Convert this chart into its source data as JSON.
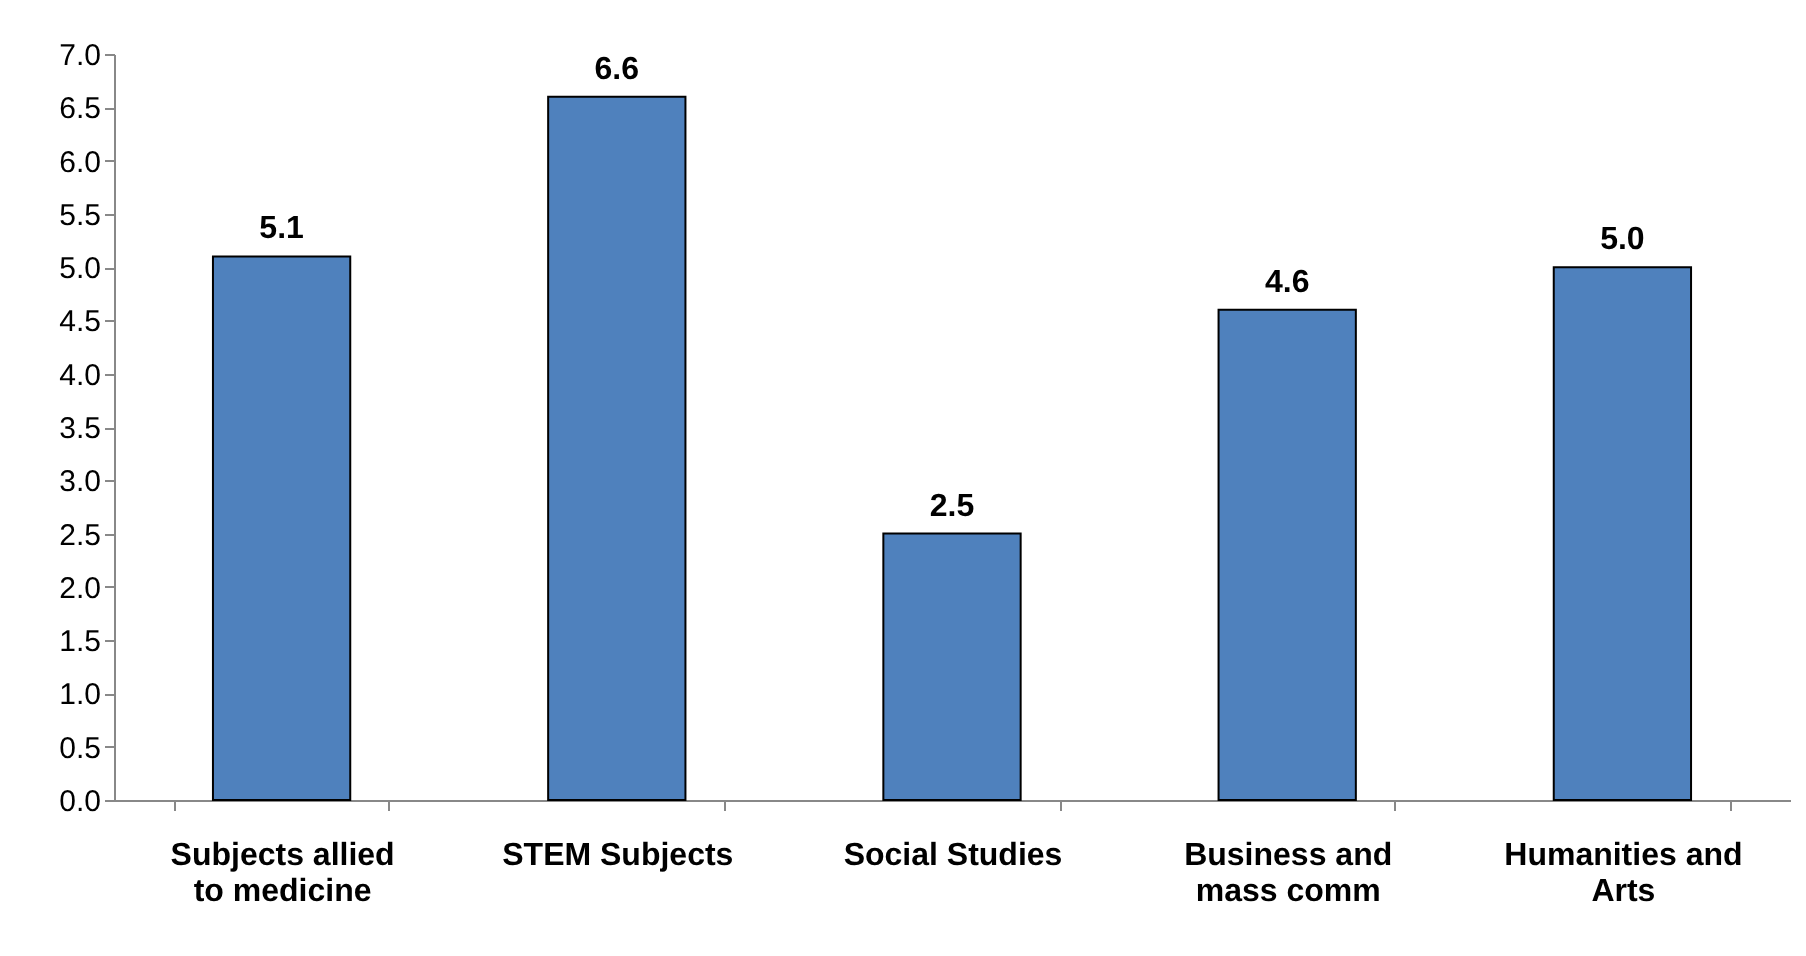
{
  "chart_data": {
    "type": "bar",
    "categories": [
      "Subjects allied to medicine",
      "STEM Subjects",
      "Social Studies",
      "Business and mass comm",
      "Humanities and Arts"
    ],
    "values": [
      5.1,
      6.6,
      2.5,
      4.6,
      5.0
    ],
    "value_labels": [
      "5.1",
      "6.6",
      "2.5",
      "4.6",
      "5.0"
    ],
    "color": "#4f81bd",
    "ylim": [
      0,
      7
    ],
    "yticks": [
      {
        "value": 0,
        "label": "0.0"
      },
      {
        "value": 0.5,
        "label": "0.5"
      },
      {
        "value": 1,
        "label": "1.0"
      },
      {
        "value": 1.5,
        "label": "1.5"
      },
      {
        "value": 2,
        "label": "2.0"
      },
      {
        "value": 2.5,
        "label": "2.5"
      },
      {
        "value": 3,
        "label": "3.0"
      },
      {
        "value": 3.5,
        "label": "3.5"
      },
      {
        "value": 4,
        "label": "4.0"
      },
      {
        "value": 4.5,
        "label": "4.5"
      },
      {
        "value": 5,
        "label": "5.0"
      },
      {
        "value": 5.5,
        "label": "5.5"
      },
      {
        "value": 6,
        "label": "6.0"
      },
      {
        "value": 6.5,
        "label": "6.5"
      },
      {
        "value": 7,
        "label": "7.0"
      }
    ],
    "grid": false
  }
}
